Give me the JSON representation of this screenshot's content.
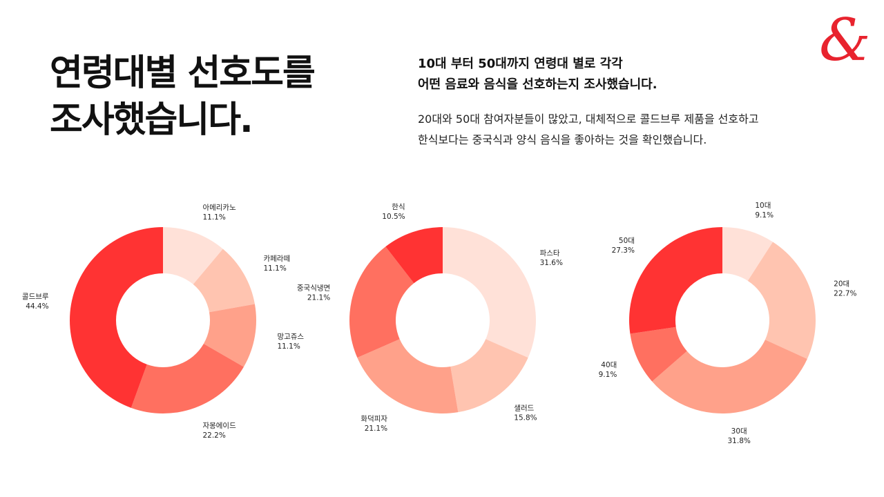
{
  "header": {
    "title_lines": [
      "연령대별 선호도를",
      "조사했습니다."
    ],
    "lead_lines": [
      "10대 부터 50대까지 연령대 별로 각각",
      "어떤 음료와 음식을 선호하는지 조사했습니다."
    ],
    "body_lines": [
      "20대와 50대 참여자분들이 많았고, 대체적으로 콜드브루 제품을 선호하고",
      "한식보다는 중국식과 양식 음식을 좋아하는 것을 확인했습니다."
    ],
    "logo_glyph": "&"
  },
  "colors": {
    "accent": "#e8232e"
  },
  "chart_data": [
    {
      "type": "pie",
      "name": "beverage-preference",
      "categories": [
        "아메리카노",
        "카페라떼",
        "망고쥬스",
        "자몽에이드",
        "콜드브루"
      ],
      "values": [
        11.1,
        11.1,
        11.1,
        22.2,
        44.4
      ],
      "value_labels": [
        "11.1%",
        "11.1%",
        "11.1%",
        "22.2%",
        "44.4%"
      ],
      "colors": [
        "#ffe1d8",
        "#ffc4b0",
        "#ffa18a",
        "#ff7060",
        "#ff3333"
      ]
    },
    {
      "type": "pie",
      "name": "food-preference",
      "categories": [
        "파스타",
        "샐러드",
        "화덕피자",
        "중국식냉면",
        "한식"
      ],
      "values": [
        31.6,
        15.8,
        21.1,
        21.1,
        10.5
      ],
      "value_labels": [
        "31.6%",
        "15.8%",
        "21.1%",
        "21.1%",
        "10.5%"
      ],
      "colors": [
        "#ffe1d8",
        "#ffc4b0",
        "#ffa18a",
        "#ff7060",
        "#ff3333"
      ]
    },
    {
      "type": "pie",
      "name": "age-distribution",
      "categories": [
        "10대",
        "20대",
        "30대",
        "40대",
        "50대"
      ],
      "values": [
        9.1,
        22.7,
        31.8,
        9.1,
        27.3
      ],
      "value_labels": [
        "9.1%",
        "22.7%",
        "31.8%",
        "9.1%",
        "27.3%"
      ],
      "colors": [
        "#ffe1d8",
        "#ffc4b0",
        "#ffa18a",
        "#ff7060",
        "#ff3333"
      ]
    }
  ]
}
